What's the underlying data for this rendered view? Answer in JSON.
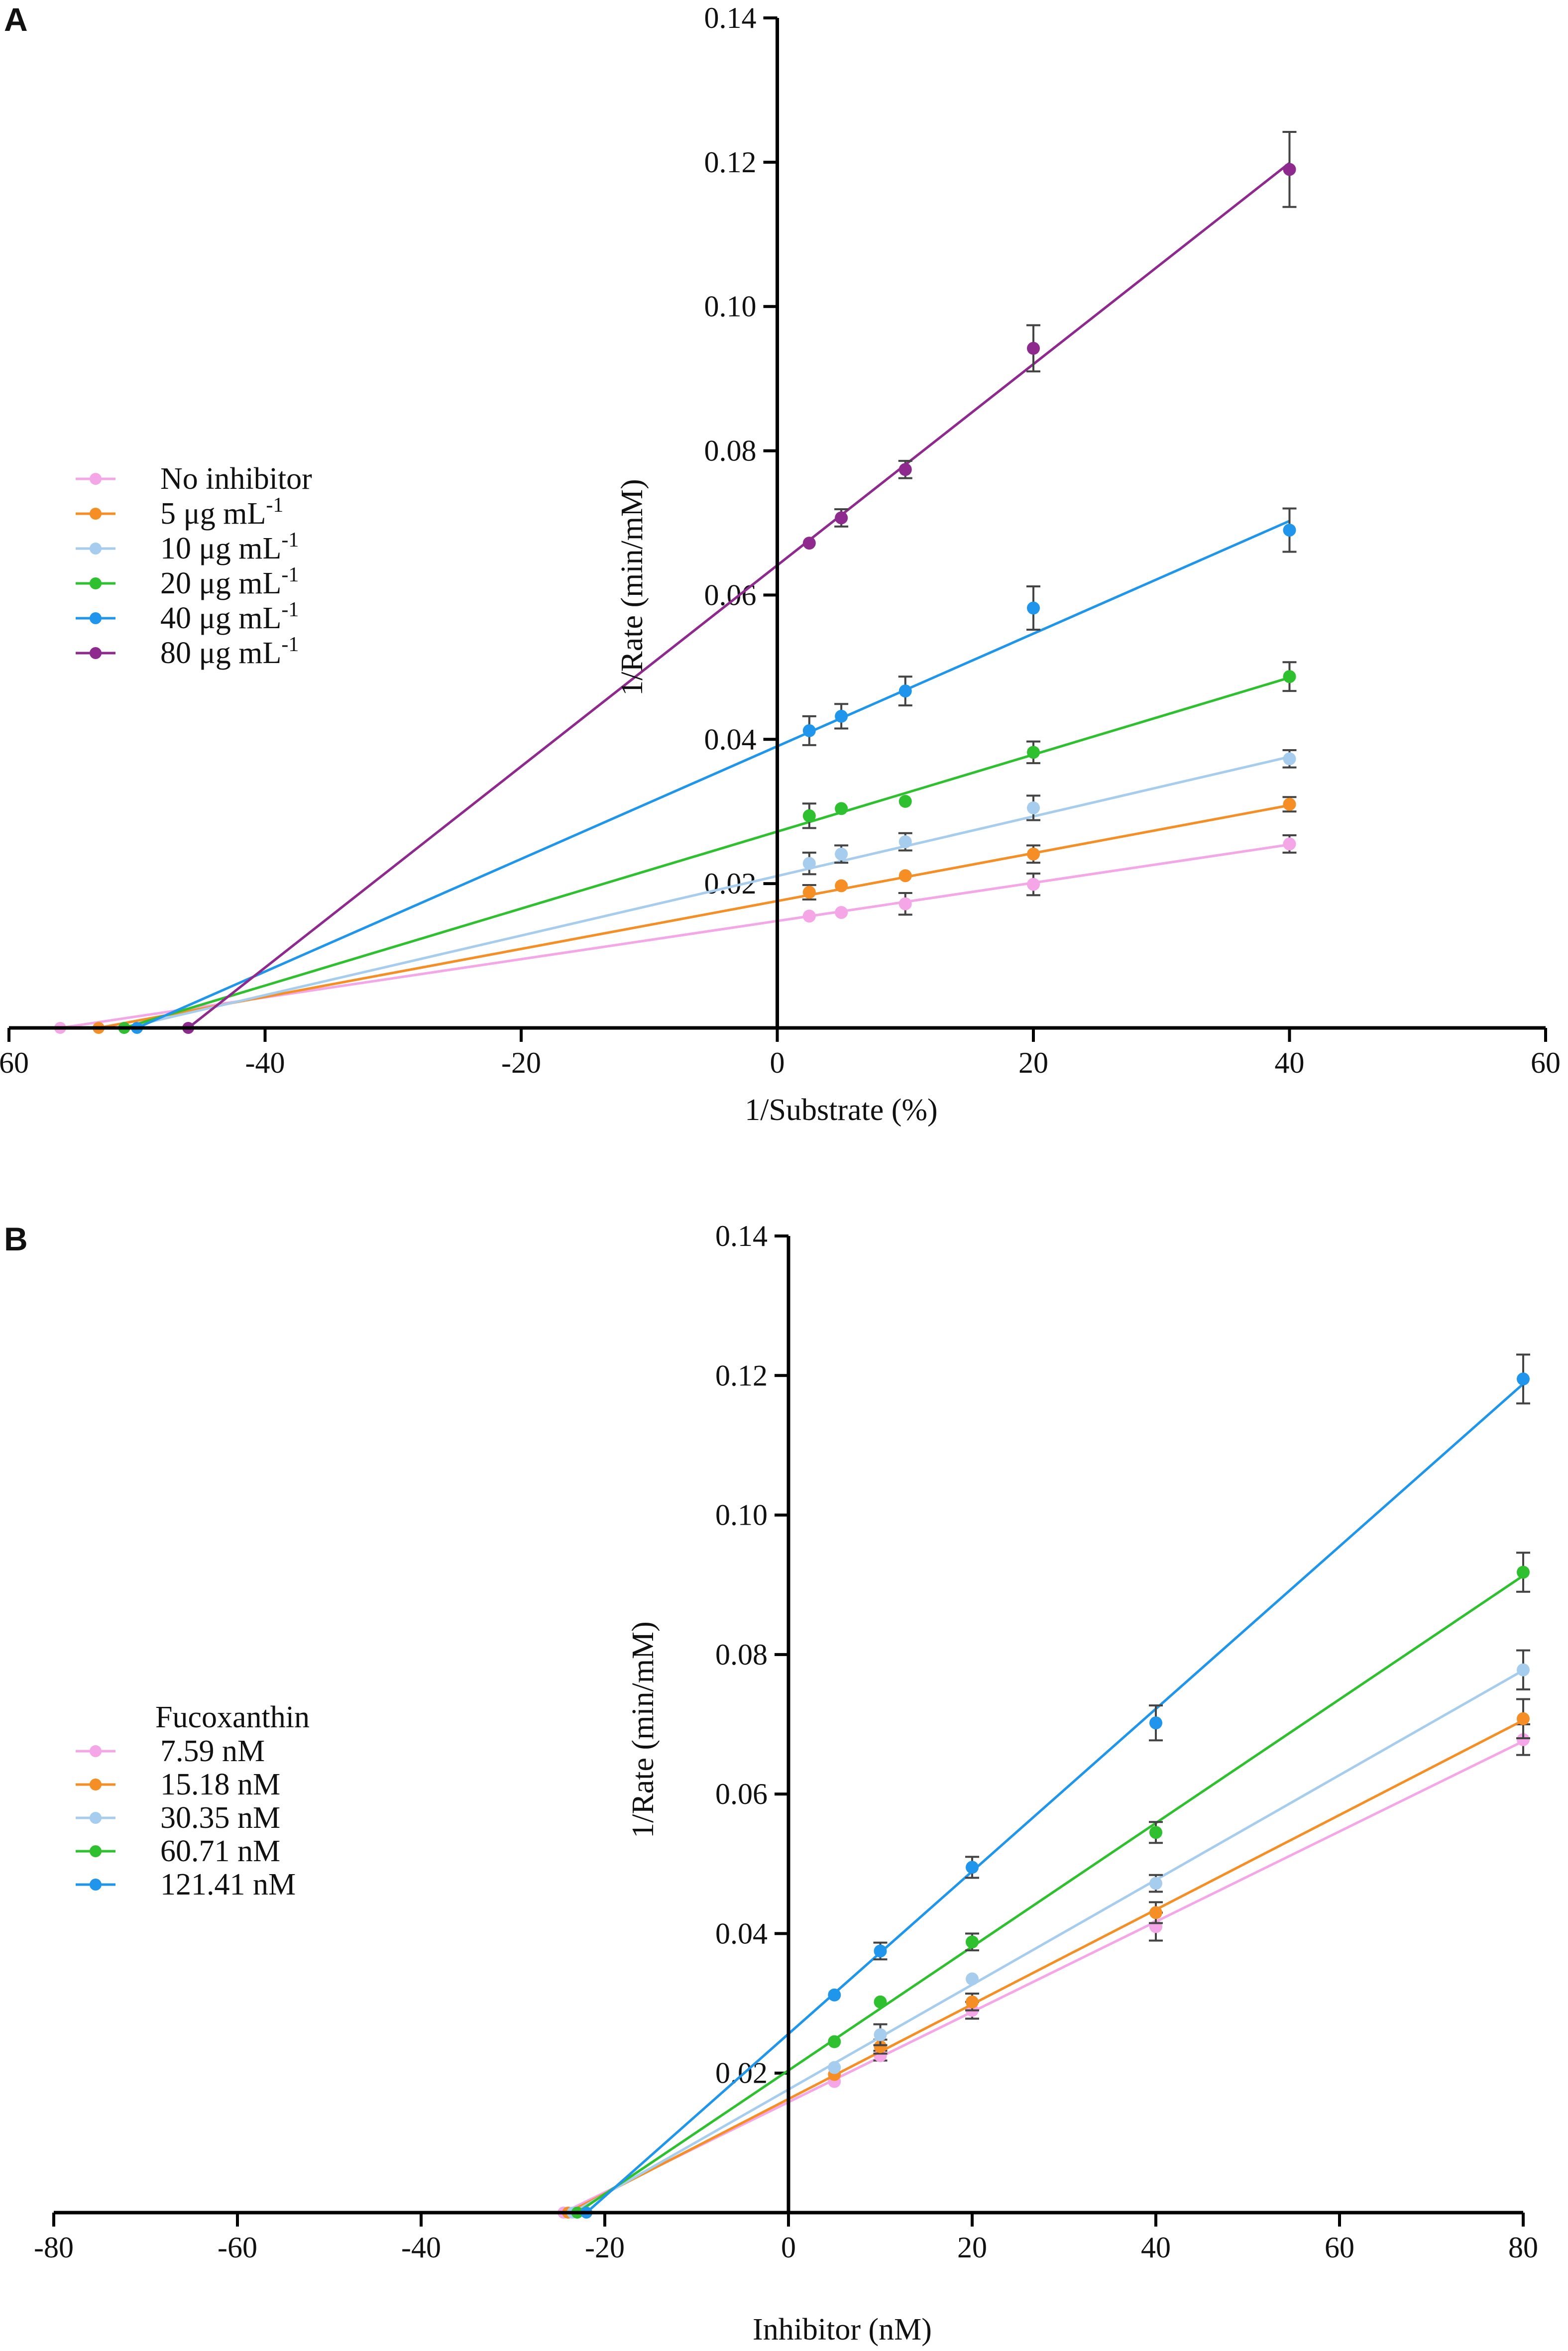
{
  "chart_data": [
    {
      "panel": "A",
      "type": "line",
      "title": "",
      "xlabel": "1/Substrate (%)",
      "ylabel": "1/Rate (min/mM)",
      "xlim": [
        -60,
        60
      ],
      "ylim": [
        0,
        0.14
      ],
      "xticks": [
        -60,
        -40,
        -20,
        0,
        20,
        40,
        60
      ],
      "xtick_labels": [
        "-60",
        "-40",
        "-20",
        "0",
        "20",
        "40",
        "60"
      ],
      "yticks": [
        0.02,
        0.04,
        0.06,
        0.08,
        0.1,
        0.12,
        0.14
      ],
      "ytick_labels": [
        "0.02",
        "0.04",
        "0.06",
        "0.08",
        "0.10",
        "0.12",
        "0.14"
      ],
      "grid": false,
      "legend_position": "left-middle",
      "legend_title": "",
      "x": [
        2.5,
        5,
        10,
        20,
        40
      ],
      "series": [
        {
          "name": "No inhibitor",
          "sup": "",
          "color": "#F4A6E6",
          "x_intercept": -56,
          "values": [
            0.0155,
            0.016,
            0.0172,
            0.0199,
            0.0255
          ],
          "errors": [
            0.0005,
            0.0005,
            0.0015,
            0.0015,
            0.0012
          ]
        },
        {
          "name": "5 μg mL",
          "sup": "-1",
          "color": "#F68E26",
          "x_intercept": -53,
          "values": [
            0.0188,
            0.0197,
            0.0211,
            0.0241,
            0.031
          ],
          "errors": [
            0.001,
            0.0005,
            0.0005,
            0.0012,
            0.001
          ]
        },
        {
          "name": "10 μg mL",
          "sup": "-1",
          "color": "#A7CDEE",
          "x_intercept": -51,
          "values": [
            0.0228,
            0.0241,
            0.0258,
            0.0305,
            0.0373
          ],
          "errors": [
            0.0015,
            0.0012,
            0.0012,
            0.0017,
            0.0012
          ]
        },
        {
          "name": "20 μg mL",
          "sup": "-1",
          "color": "#2EC02E",
          "x_intercept": -51,
          "values": [
            0.0294,
            0.0304,
            0.0314,
            0.0382,
            0.0487
          ],
          "errors": [
            0.0017,
            0.0005,
            0.0005,
            0.0015,
            0.002
          ]
        },
        {
          "name": "40 μg mL",
          "sup": "-1",
          "color": "#1F95EC",
          "x_intercept": -50,
          "values": [
            0.0412,
            0.0432,
            0.0467,
            0.0582,
            0.069
          ],
          "errors": [
            0.002,
            0.0017,
            0.002,
            0.003,
            0.003
          ]
        },
        {
          "name": "80 μg mL",
          "sup": "-1",
          "color": "#8E2A8E",
          "x_intercept": -46,
          "values": [
            0.0672,
            0.0707,
            0.0774,
            0.0942,
            0.119
          ],
          "errors": [
            0.0005,
            0.0012,
            0.0012,
            0.0032,
            0.0052
          ]
        }
      ]
    },
    {
      "panel": "B",
      "type": "line",
      "title": "",
      "xlabel": "Inhibitor (nM)",
      "ylabel": "1/Rate (min/mM)",
      "xlim": [
        -80,
        80
      ],
      "ylim": [
        0,
        0.14
      ],
      "xticks": [
        -80,
        -60,
        -40,
        -20,
        0,
        20,
        40,
        60,
        80
      ],
      "xtick_labels": [
        "-80",
        "-60",
        "-40",
        "-20",
        "0",
        "20",
        "40",
        "60",
        "80"
      ],
      "yticks": [
        0.02,
        0.04,
        0.06,
        0.08,
        0.1,
        0.12,
        0.14
      ],
      "ytick_labels": [
        "0.02",
        "0.04",
        "0.06",
        "0.08",
        "0.10",
        "0.12",
        "0.14"
      ],
      "grid": false,
      "legend_position": "left-middle",
      "legend_title": "Fucoxanthin",
      "x": [
        5,
        10,
        20,
        40,
        80
      ],
      "series": [
        {
          "name": "7.59 nM",
          "sup": "",
          "color": "#F4A6E6",
          "x_intercept": -24.5,
          "values": [
            0.0188,
            0.0225,
            0.029,
            0.041,
            0.0678
          ],
          "errors": [
            0.0005,
            0.0007,
            0.0012,
            0.002,
            0.0022
          ]
        },
        {
          "name": "15.18 nM",
          "sup": "",
          "color": "#F68E26",
          "x_intercept": -24,
          "values": [
            0.0198,
            0.0238,
            0.0302,
            0.043,
            0.0708
          ],
          "errors": [
            0.0005,
            0.001,
            0.0012,
            0.0015,
            0.0028
          ]
        },
        {
          "name": "30.35 nM",
          "sup": "",
          "color": "#A7CDEE",
          "x_intercept": -23.5,
          "values": [
            0.0208,
            0.0255,
            0.0335,
            0.0472,
            0.0778
          ],
          "errors": [
            0.0005,
            0.0015,
            0.0005,
            0.0012,
            0.0028
          ]
        },
        {
          "name": "60.71 nM",
          "sup": "",
          "color": "#2EC02E",
          "x_intercept": -23,
          "values": [
            0.0245,
            0.0302,
            0.0388,
            0.0545,
            0.0918
          ],
          "errors": [
            0.0005,
            0.0005,
            0.0012,
            0.0015,
            0.0028
          ]
        },
        {
          "name": "121.41 nM",
          "sup": "",
          "color": "#1F95EC",
          "x_intercept": -22,
          "values": [
            0.0312,
            0.0375,
            0.0495,
            0.0702,
            0.1195
          ],
          "errors": [
            0.0005,
            0.0012,
            0.0015,
            0.0025,
            0.0035
          ]
        }
      ]
    }
  ]
}
